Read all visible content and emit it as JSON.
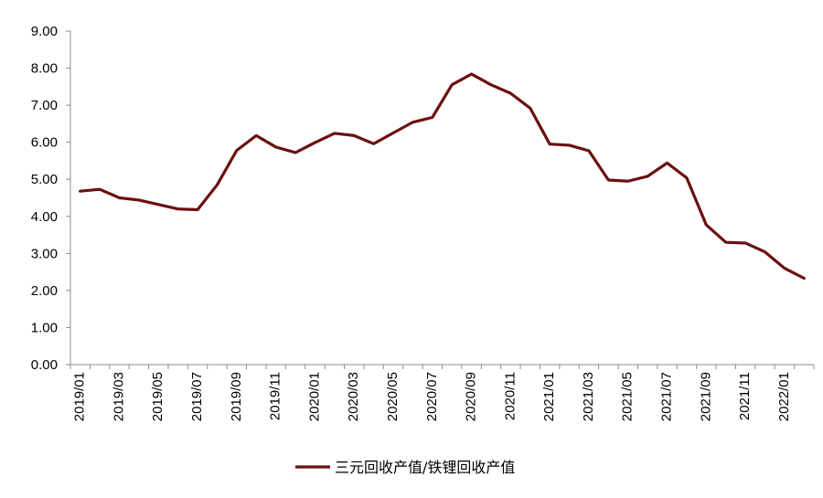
{
  "chart_data": {
    "type": "line",
    "title": "",
    "xlabel": "",
    "ylabel": "",
    "ylim": [
      0,
      9
    ],
    "y_ticks": [
      "0.00",
      "1.00",
      "2.00",
      "3.00",
      "4.00",
      "5.00",
      "6.00",
      "7.00",
      "8.00",
      "9.00"
    ],
    "x_ticks": [
      "2019/01",
      "2019/03",
      "2019/05",
      "2019/07",
      "2019/09",
      "2019/11",
      "2020/01",
      "2020/03",
      "2020/05",
      "2020/07",
      "2020/09",
      "2020/11",
      "2021/01",
      "2021/03",
      "2021/05",
      "2021/07",
      "2021/09",
      "2021/11",
      "2022/01"
    ],
    "x": [
      "2019/01",
      "2019/02",
      "2019/03",
      "2019/04",
      "2019/05",
      "2019/06",
      "2019/07",
      "2019/08",
      "2019/09",
      "2019/10",
      "2019/11",
      "2019/12",
      "2020/01",
      "2020/02",
      "2020/03",
      "2020/04",
      "2020/05",
      "2020/06",
      "2020/07",
      "2020/08",
      "2020/09",
      "2020/10",
      "2020/11",
      "2020/12",
      "2021/01",
      "2021/02",
      "2021/03",
      "2021/04",
      "2021/05",
      "2021/06",
      "2021/07",
      "2021/08",
      "2021/09",
      "2021/10",
      "2021/11",
      "2021/12",
      "2022/01",
      "2022/02"
    ],
    "series": [
      {
        "name": "三元回收产值/铁锂回收产值",
        "color": "#6b0f0f",
        "values": [
          4.68,
          4.73,
          4.5,
          4.44,
          4.32,
          4.2,
          4.18,
          4.85,
          5.78,
          6.18,
          5.87,
          5.72,
          5.99,
          6.24,
          6.18,
          5.96,
          6.25,
          6.54,
          6.67,
          7.55,
          7.84,
          7.55,
          7.32,
          6.92,
          5.95,
          5.92,
          5.77,
          4.98,
          4.95,
          5.08,
          5.44,
          5.04,
          3.77,
          3.3,
          3.28,
          3.04,
          2.6,
          2.33
        ]
      }
    ],
    "grid": false,
    "legend_position": "bottom-center"
  }
}
